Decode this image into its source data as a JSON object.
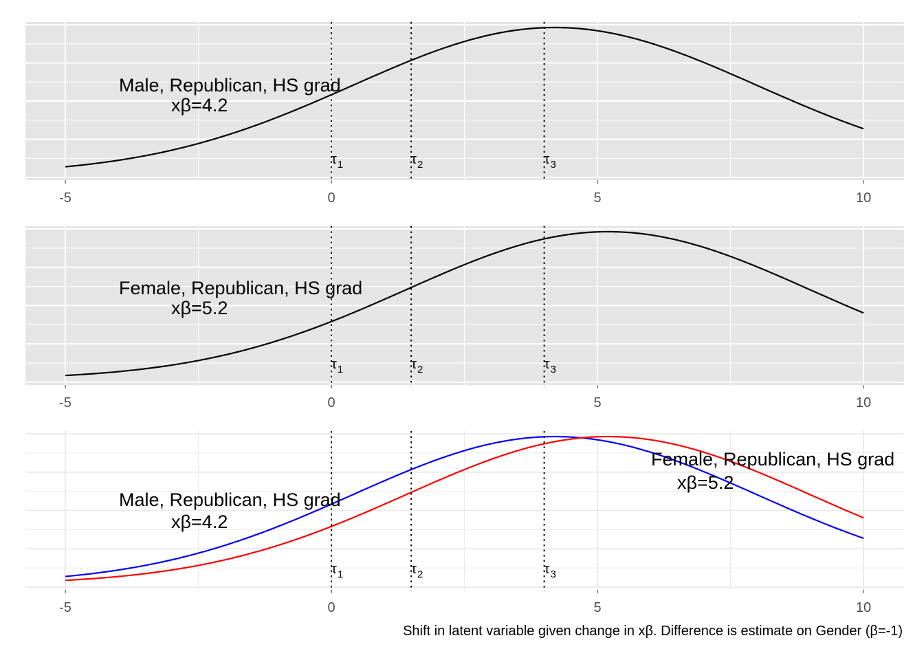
{
  "caption": "Shift in latent variable given change in xβ. Difference is estimate on Gender (β=-1)",
  "colors": {
    "panel_bg": "#e5e5e5",
    "grid": "#ffffff",
    "grid_light": "#ebebeb",
    "male": "#0000ff",
    "female": "#ff0000",
    "curve": "#000000"
  },
  "chart_data": [
    {
      "type": "line",
      "panel": "top",
      "background": "gray",
      "x": {
        "range": [
          -5,
          10
        ],
        "ticks": [
          -5,
          0,
          5,
          10
        ],
        "tick_labels": [
          "-5",
          "0",
          "5",
          "10"
        ]
      },
      "series": [
        {
          "name": "Male, Republican, HS grad",
          "mean": 4.2,
          "sd": 3.8,
          "color": "#000000"
        }
      ],
      "thresholds": [
        {
          "label": "τ",
          "sub": "1",
          "x": 0
        },
        {
          "label": "τ",
          "sub": "2",
          "x": 1.5
        },
        {
          "label": "τ",
          "sub": "3",
          "x": 4
        }
      ],
      "annotations": [
        {
          "line1": "Male, Republican, HS grad",
          "line2": "xβ=4.2"
        }
      ]
    },
    {
      "type": "line",
      "panel": "middle",
      "background": "gray",
      "x": {
        "range": [
          -5,
          10
        ],
        "ticks": [
          -5,
          0,
          5,
          10
        ],
        "tick_labels": [
          "-5",
          "0",
          "5",
          "10"
        ]
      },
      "series": [
        {
          "name": "Female, Republican, HS grad",
          "mean": 5.2,
          "sd": 3.8,
          "color": "#000000"
        }
      ],
      "thresholds": [
        {
          "label": "τ",
          "sub": "1",
          "x": 0
        },
        {
          "label": "τ",
          "sub": "2",
          "x": 1.5
        },
        {
          "label": "τ",
          "sub": "3",
          "x": 4
        }
      ],
      "annotations": [
        {
          "line1": "Female, Republican, HS grad",
          "line2": "xβ=5.2"
        }
      ]
    },
    {
      "type": "line",
      "panel": "bottom",
      "background": "white",
      "x": {
        "range": [
          -5,
          10
        ],
        "ticks": [
          -5,
          0,
          5,
          10
        ],
        "tick_labels": [
          "-5",
          "0",
          "5",
          "10"
        ]
      },
      "series": [
        {
          "name": "Male, Republican, HS grad",
          "mean": 4.2,
          "sd": 3.8,
          "color": "#0000ff"
        },
        {
          "name": "Female, Republican, HS grad",
          "mean": 5.2,
          "sd": 3.8,
          "color": "#ff0000"
        }
      ],
      "thresholds": [
        {
          "label": "τ",
          "sub": "1",
          "x": 0
        },
        {
          "label": "τ",
          "sub": "2",
          "x": 1.5
        },
        {
          "label": "τ",
          "sub": "3",
          "x": 4
        }
      ],
      "annotations": [
        {
          "line1": "Male, Republican, HS grad",
          "line2": "xβ=4.2"
        },
        {
          "line1": "Female, Republican, HS grad",
          "line2": "xβ=5.2"
        }
      ]
    }
  ]
}
